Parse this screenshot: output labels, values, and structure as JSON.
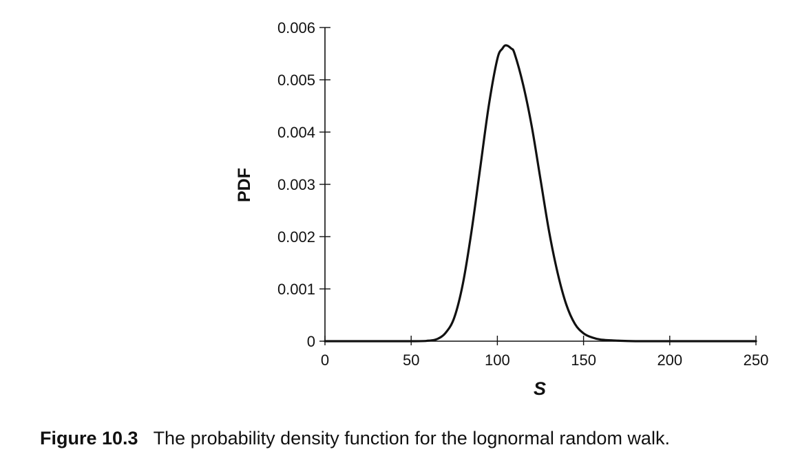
{
  "chart_data": {
    "type": "line",
    "title": "",
    "xlabel": "S",
    "ylabel": "PDF",
    "xlim": [
      0,
      250
    ],
    "ylim": [
      0,
      0.006
    ],
    "xticks": [
      0,
      50,
      100,
      150,
      200,
      250
    ],
    "xtick_labels": [
      "0",
      "50",
      "100",
      "150",
      "200",
      "250"
    ],
    "yticks": [
      0,
      0.001,
      0.002,
      0.003,
      0.004,
      0.005,
      0.006
    ],
    "ytick_labels": [
      "0",
      "0.001",
      "0.002",
      "0.003",
      "0.004",
      "0.005",
      "0.006"
    ],
    "grid": false,
    "series": [
      {
        "color": "#111111",
        "x": [
          0,
          50,
          60,
          65,
          70,
          75,
          80,
          85,
          90,
          95,
          100,
          103,
          105,
          108,
          110,
          115,
          120,
          125,
          130,
          135,
          140,
          145,
          150,
          155,
          160,
          170,
          180,
          200,
          250
        ],
        "y": [
          0,
          0,
          1e-05,
          4e-05,
          0.00016,
          0.00045,
          0.0011,
          0.0021,
          0.0033,
          0.0045,
          0.0054,
          0.0056,
          0.00566,
          0.0056,
          0.0055,
          0.0049,
          0.0041,
          0.0031,
          0.0021,
          0.0013,
          0.0007,
          0.00033,
          0.00015,
          7e-05,
          3e-05,
          1e-05,
          0,
          0,
          0
        ]
      }
    ]
  },
  "caption": {
    "figure_number": "Figure 10.3",
    "text": "The probability density function for the lognormal random walk."
  }
}
